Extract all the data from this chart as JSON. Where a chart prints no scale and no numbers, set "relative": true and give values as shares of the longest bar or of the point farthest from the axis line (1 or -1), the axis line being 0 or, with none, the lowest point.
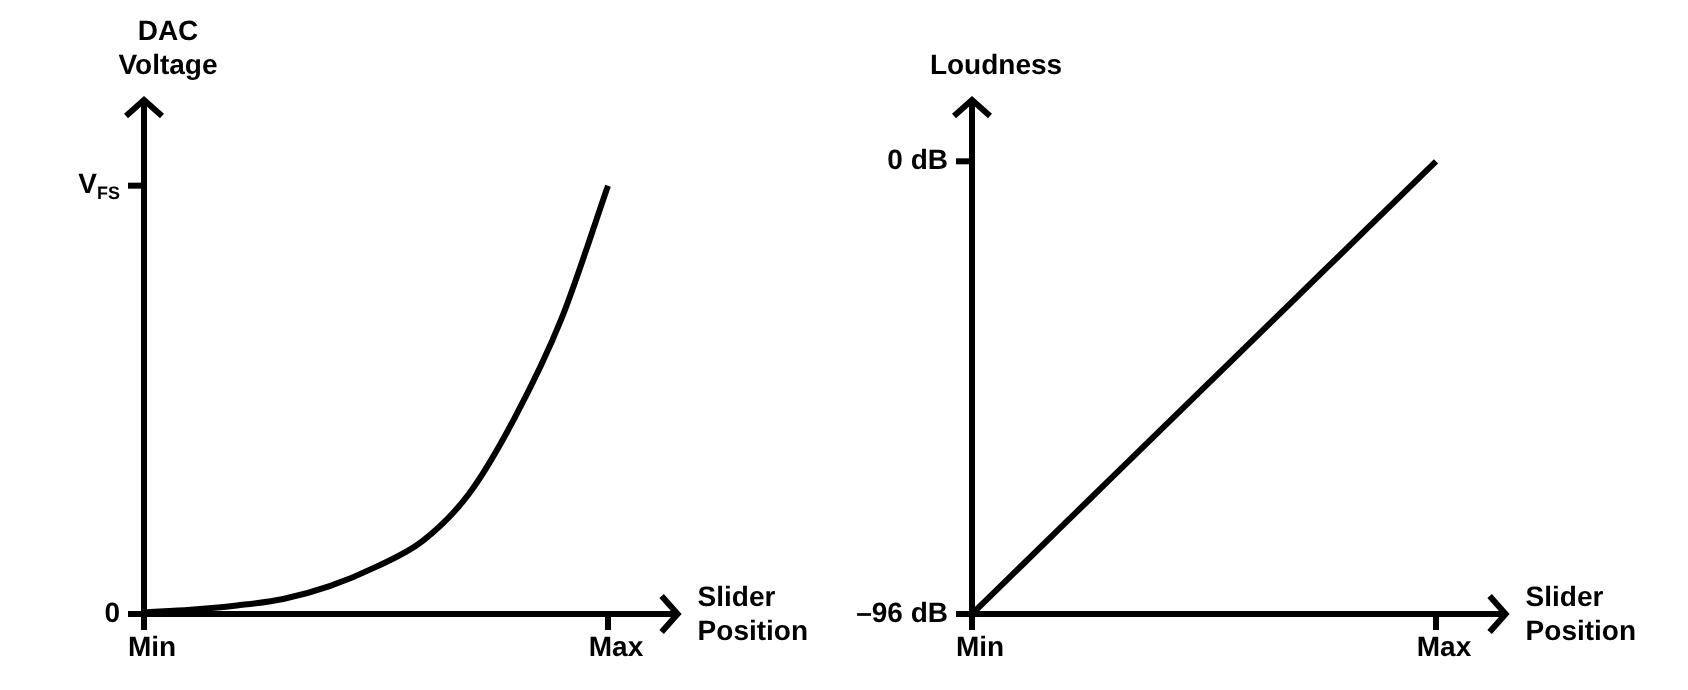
{
  "chart_data": [
    {
      "type": "line",
      "xlabel": "Slider Position",
      "ylabel": "DAC Voltage",
      "relative": true,
      "categories": [
        "Min",
        null,
        null,
        null,
        null,
        null,
        null,
        null,
        null,
        null,
        "Max"
      ],
      "series": [
        {
          "color": "#000000",
          "values": [
            0.004,
            0.01,
            0.02,
            0.035,
            0.065,
            0.11,
            0.17,
            0.28,
            0.46,
            0.69,
            1.0
          ]
        }
      ],
      "annotations": [
        "0",
        "V$_{FS}$"
      ],
      "grid": false,
      "legend": false,
      "marker": "none",
      "line_style": "solid"
    },
    {
      "type": "line",
      "xlabel": "Slider Position",
      "ylabel": "Loudness",
      "categories": [
        "Min",
        null,
        null,
        null,
        null,
        null,
        null,
        null,
        null,
        null,
        "Max"
      ],
      "series": [
        {
          "color": "#000000",
          "values": [
            -96,
            -86.4,
            -76.8,
            -67.2,
            -57.6,
            -48,
            -38.4,
            -28.8,
            -19.2,
            -9.6,
            0
          ]
        }
      ],
      "ylim": [
        -96,
        13
      ],
      "yticks": [
        {
          "value": -96,
          "label": "–96 dB"
        },
        {
          "value": 0,
          "label": "0 dB"
        }
      ],
      "grid": false,
      "legend": false,
      "marker": "none",
      "line_style": "solid"
    }
  ]
}
